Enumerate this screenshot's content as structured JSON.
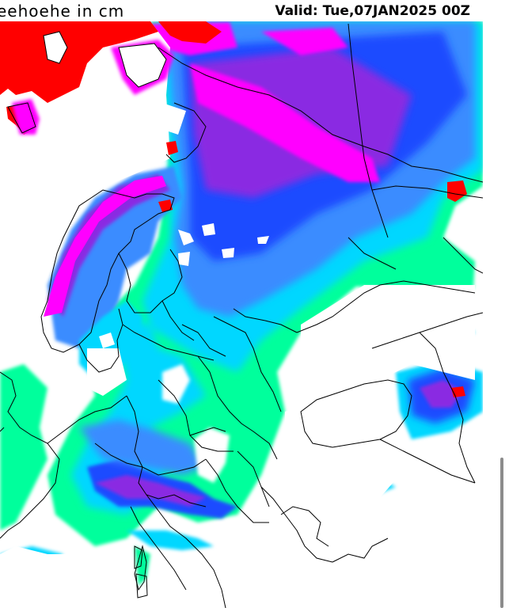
{
  "header": {
    "title_left": "eehoehe in cm",
    "title_right": "Valid: Tue,07JAN2025 00Z"
  },
  "legend_colors": {
    "deep_snow": "#ff0000",
    "very_high": "#ff00ff",
    "high": "#8a2be2",
    "medium_high": "#1e4bff",
    "medium": "#3a8cff",
    "low": "#00d7ff",
    "very_low": "#00ff9c",
    "none": "#ffffff",
    "border_line": "#000000"
  }
}
